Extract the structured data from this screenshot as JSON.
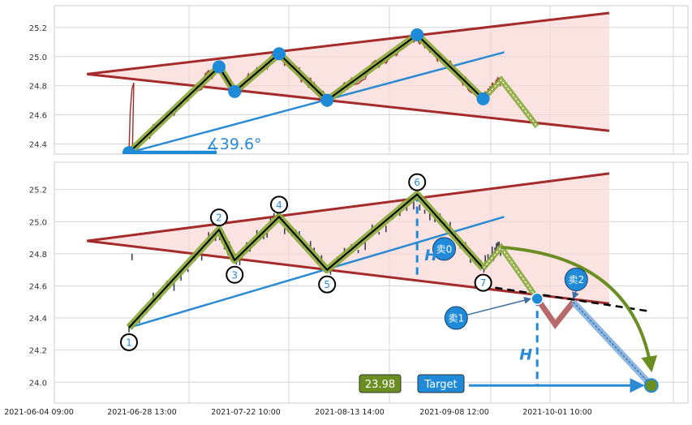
{
  "chart_data": [
    {
      "type": "line",
      "panel": "top",
      "y_ticks": [
        24.4,
        24.6,
        24.8,
        25.0,
        25.2
      ],
      "ylim": [
        24.33,
        25.35
      ],
      "grid": true,
      "pivots": [
        {
          "i": 0,
          "x": 0.0,
          "y": 24.34
        },
        {
          "i": 1,
          "x": 15.0,
          "y": 24.93
        },
        {
          "i": 2,
          "x": 17.6,
          "y": 24.76
        },
        {
          "i": 3,
          "x": 25.0,
          "y": 25.02
        },
        {
          "i": 4,
          "x": 33.0,
          "y": 24.7
        },
        {
          "i": 5,
          "x": 48.0,
          "y": 25.15
        },
        {
          "i": 6,
          "x": 59.0,
          "y": 24.71
        }
      ],
      "projection": [
        [
          59.0,
          24.71
        ],
        [
          62.0,
          24.84
        ],
        [
          68.0,
          24.52
        ]
      ],
      "channel_upper": [
        [
          -7.0,
          24.88
        ],
        [
          80.0,
          25.3
        ]
      ],
      "channel_lower": [
        [
          -7.0,
          24.88
        ],
        [
          80.0,
          24.49
        ]
      ],
      "trend_line": [
        [
          0.0,
          24.34
        ],
        [
          62.5,
          25.03
        ]
      ],
      "angle_label": "∡39.6°",
      "colors": {
        "price": "#a52a2a",
        "zigzag": "#6b8e23",
        "channel": "#a52a2a",
        "trend": "#2a8ad4",
        "fill": "#f8d7d3",
        "pivot": "#1f8ad8"
      }
    },
    {
      "type": "line",
      "panel": "bottom",
      "y_ticks": [
        24.0,
        24.2,
        24.4,
        24.6,
        24.8,
        25.0,
        25.2
      ],
      "ylim": [
        23.87,
        25.37
      ],
      "x_tick_labels": [
        "2021-06-04 09:00",
        "2021-06-28 13:00",
        "2021-07-22 10:00",
        "2021-08-13 14:00",
        "2021-09-08 12:00",
        "2021-10-01 10:00"
      ],
      "grid": true,
      "pivots": [
        {
          "label": "1",
          "x": 0.0,
          "y": 24.34
        },
        {
          "label": "2",
          "x": 15.0,
          "y": 24.95
        },
        {
          "label": "3",
          "x": 17.6,
          "y": 24.76
        },
        {
          "label": "4",
          "x": 25.0,
          "y": 25.03
        },
        {
          "label": "5",
          "x": 33.0,
          "y": 24.7
        },
        {
          "label": "6",
          "x": 48.0,
          "y": 25.17
        },
        {
          "label": "7",
          "x": 59.0,
          "y": 24.71
        }
      ],
      "projection": [
        [
          59.0,
          24.71
        ],
        [
          62.0,
          24.84
        ],
        [
          68.0,
          24.52
        ]
      ],
      "dip": [
        [
          68.0,
          24.52
        ],
        [
          71.0,
          24.36
        ],
        [
          74.0,
          24.5
        ]
      ],
      "drop_path": [
        [
          74.0,
          24.5
        ],
        [
          87.0,
          23.98
        ]
      ],
      "neckline": [
        [
          59.0,
          24.6
        ],
        [
          87.0,
          24.44
        ]
      ],
      "channel_upper": [
        [
          -7.0,
          24.88
        ],
        [
          80.0,
          25.3
        ]
      ],
      "channel_lower": [
        [
          -7.0,
          24.88
        ],
        [
          80.0,
          24.49
        ]
      ],
      "trend_line": [
        [
          0.0,
          24.34
        ],
        [
          62.5,
          25.03
        ]
      ],
      "H_label": "H",
      "sell_labels": [
        "卖0",
        "卖1",
        "卖2"
      ],
      "target_value_label": "23.98",
      "target_label": "Target",
      "target_value": 23.98,
      "colors": {
        "candle": "#3c3c54",
        "zigzag": "#6b8e23",
        "channel": "#a52a2a",
        "trend": "#2a8ad4",
        "fill": "#f8d7d3",
        "sell": "#1f8ad8",
        "target_box": "#6b8e23"
      }
    }
  ]
}
